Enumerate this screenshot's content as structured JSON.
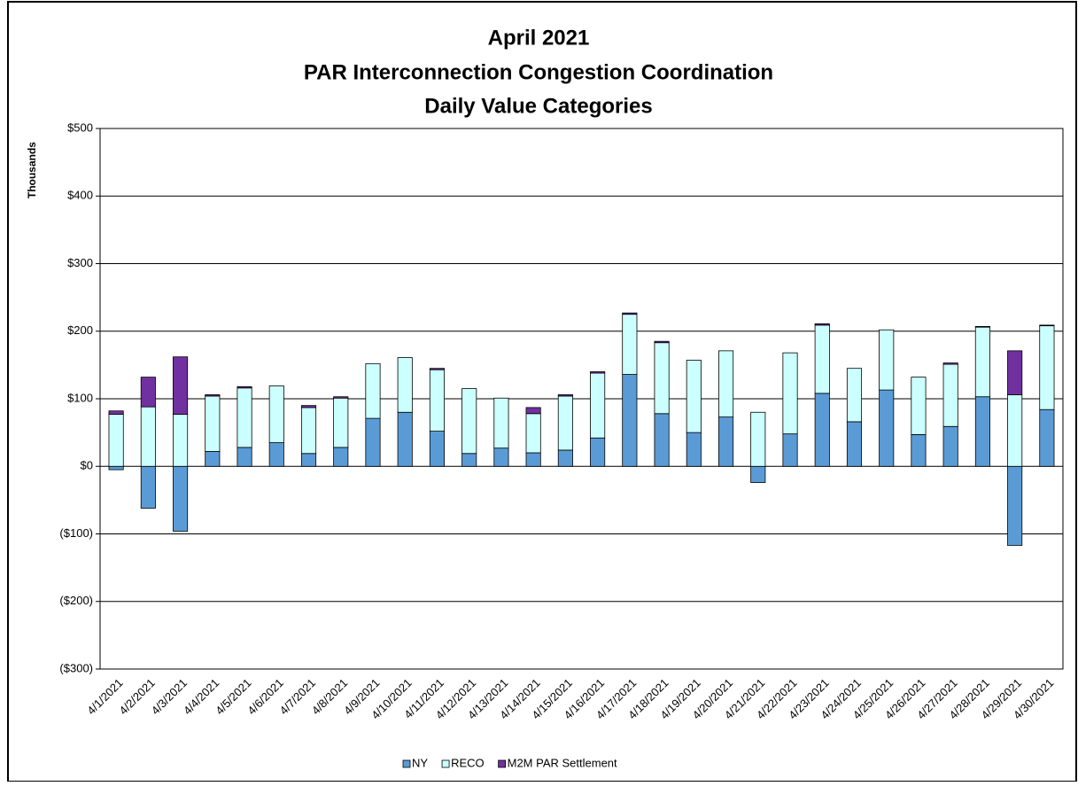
{
  "chart_data": {
    "type": "stacked_bar",
    "title_lines": [
      "April 2021",
      "PAR Interconnection Congestion Coordination",
      "Daily Value Categories"
    ],
    "y_label": "Thousands",
    "categories": [
      "4/1/2021",
      "4/2/2021",
      "4/3/2021",
      "4/4/2021",
      "4/5/2021",
      "4/6/2021",
      "4/7/2021",
      "4/8/2021",
      "4/9/2021",
      "4/10/2021",
      "4/11/2021",
      "4/12/2021",
      "4/13/2021",
      "4/14/2021",
      "4/15/2021",
      "4/16/2021",
      "4/17/2021",
      "4/18/2021",
      "4/19/2021",
      "4/20/2021",
      "4/21/2021",
      "4/22/2021",
      "4/23/2021",
      "4/24/2021",
      "4/25/2021",
      "4/26/2021",
      "4/27/2021",
      "4/28/2021",
      "4/29/2021",
      "4/30/2021"
    ],
    "series": [
      {
        "name": "NY",
        "color": "#5b9bd5",
        "values": [
          -5,
          -62,
          -96,
          22,
          28,
          35,
          19,
          28,
          71,
          80,
          52,
          19,
          27,
          20,
          24,
          42,
          136,
          78,
          50,
          73,
          -24,
          48,
          108,
          66,
          113,
          47,
          59,
          103,
          -117,
          84
        ]
      },
      {
        "name": "RECO",
        "color": "#ccffff",
        "values": [
          77,
          88,
          77,
          82,
          88,
          84,
          68,
          73,
          81,
          81,
          91,
          96,
          74,
          58,
          80,
          96,
          89,
          105,
          107,
          98,
          80,
          120,
          101,
          79,
          89,
          85,
          92,
          103,
          106,
          124
        ]
      },
      {
        "name": "M2M PAR Settlement",
        "color": "#7030a0",
        "values": [
          5,
          44,
          85,
          2,
          2,
          0,
          3,
          2,
          0,
          0,
          2,
          0,
          0,
          9,
          2,
          2,
          2,
          2,
          0,
          0,
          0,
          0,
          2,
          0,
          0,
          0,
          2,
          1,
          65,
          1
        ]
      }
    ],
    "ylim": [
      -300,
      500
    ],
    "yticks": [
      {
        "value": -300,
        "label": "($300)"
      },
      {
        "value": -200,
        "label": "($200)"
      },
      {
        "value": -100,
        "label": "($100)"
      },
      {
        "value": 0,
        "label": "$0"
      },
      {
        "value": 100,
        "label": "$100"
      },
      {
        "value": 200,
        "label": "$200"
      },
      {
        "value": 300,
        "label": "$300"
      },
      {
        "value": 400,
        "label": "$400"
      },
      {
        "value": 500,
        "label": "$500"
      }
    ],
    "negative_tick_color": "#ff0000",
    "grid": true,
    "legend": "bottom"
  }
}
